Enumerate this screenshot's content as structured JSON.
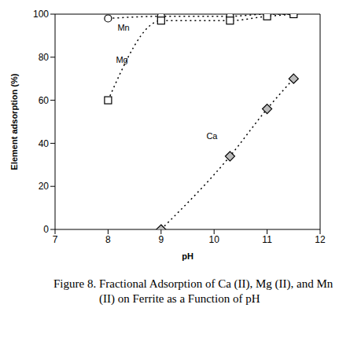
{
  "chart_data": {
    "type": "line",
    "title": "Figure 8. Fractional Adsorption of Ca (II), Mg (II), and Mn (II) on Ferrite as a Function of pH",
    "xlabel": "pH",
    "ylabel": "Element adsorption (%)",
    "xlim": [
      7,
      12
    ],
    "xticks": [
      7,
      8,
      9,
      10,
      11,
      12
    ],
    "ylim": [
      0,
      100
    ],
    "yticks": [
      0,
      20,
      40,
      60,
      80,
      100
    ],
    "line_style": "dotted",
    "series": [
      {
        "name": "Mn",
        "color": "#000000",
        "marker": "circle",
        "x": [
          8,
          9,
          10.3,
          11,
          11.5
        ],
        "values": [
          98,
          99,
          99,
          100,
          100
        ]
      },
      {
        "name": "Mg",
        "color": "#000000",
        "marker": "square",
        "x": [
          8,
          9,
          10.3,
          11,
          11.5
        ],
        "values": [
          60,
          97,
          97,
          99,
          100
        ]
      },
      {
        "name": "Ca",
        "color": "#000000",
        "marker": "diamond",
        "x": [
          9,
          10.3,
          11,
          11.5
        ],
        "values": [
          0,
          34,
          56,
          70
        ]
      }
    ]
  }
}
